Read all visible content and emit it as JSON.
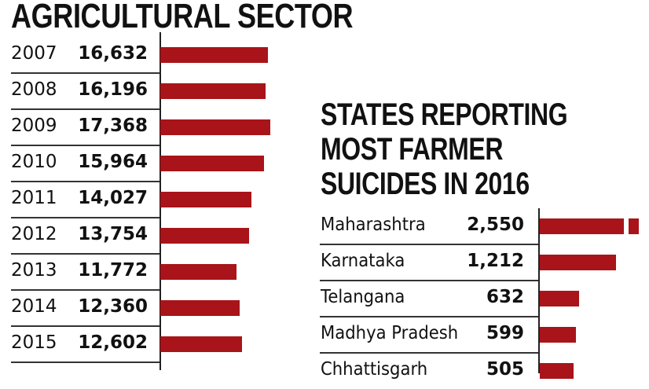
{
  "left_chart": {
    "title": "AGRICULTURAL SECTOR",
    "rows": [
      {
        "year": "2007",
        "value": "16,632"
      },
      {
        "year": "2008",
        "value": "16,196"
      },
      {
        "year": "2009",
        "value": "17,368"
      },
      {
        "year": "2010",
        "value": "15,964"
      },
      {
        "year": "2011",
        "value": "14,027"
      },
      {
        "year": "2012",
        "value": "13,754"
      },
      {
        "year": "2013",
        "value": "11,772"
      },
      {
        "year": "2014",
        "value": "12,360"
      },
      {
        "year": "2015",
        "value": "12,602"
      }
    ]
  },
  "right_chart": {
    "title_lines": [
      "STATES REPORTING",
      "MOST FARMER",
      "SUICIDES IN 2016"
    ],
    "rows": [
      {
        "state": "Maharashtra",
        "value": "2,550"
      },
      {
        "state": "Karnataka",
        "value": "1,212"
      },
      {
        "state": "Telangana",
        "value": "632"
      },
      {
        "state": "Madhya Pradesh",
        "value": "599"
      },
      {
        "state": "Chhattisgarh",
        "value": "505"
      }
    ]
  },
  "colors": {
    "bar": "#a81419",
    "text": "#111111",
    "rule": "#333333"
  },
  "chart_data": [
    {
      "type": "bar",
      "orientation": "horizontal",
      "title": "AGRICULTURAL SECTOR",
      "categories": [
        "2007",
        "2008",
        "2009",
        "2010",
        "2011",
        "2012",
        "2013",
        "2014",
        "2015"
      ],
      "values": [
        16632,
        16196,
        17368,
        15964,
        14027,
        13754,
        11772,
        12360,
        12602
      ],
      "xlabel": "",
      "ylabel": "",
      "grid": false,
      "legend": "none"
    },
    {
      "type": "bar",
      "orientation": "horizontal",
      "title": "STATES REPORTING MOST FARMER SUICIDES IN 2016",
      "categories": [
        "Maharashtra",
        "Karnataka",
        "Telangana",
        "Madhya Pradesh",
        "Chhattisgarh"
      ],
      "values": [
        2550,
        1212,
        632,
        599,
        505
      ],
      "annotations": [
        "Maharashtra bar shown with axis break"
      ],
      "xlabel": "",
      "ylabel": "",
      "grid": false,
      "legend": "none"
    }
  ]
}
